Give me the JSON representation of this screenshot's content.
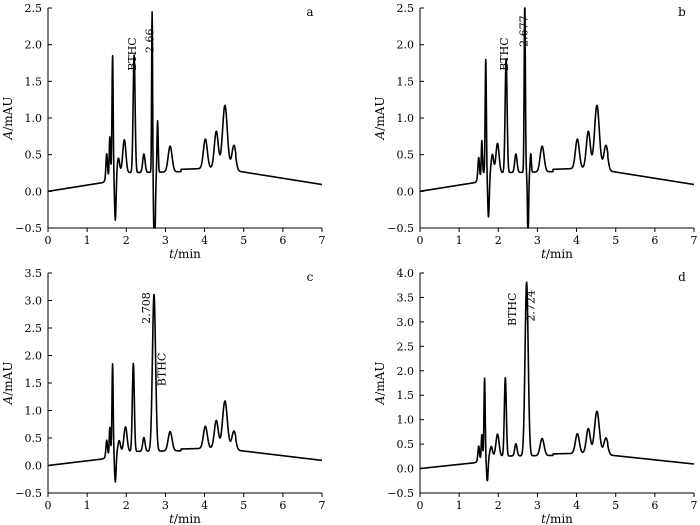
{
  "chart_data": [
    {
      "type": "line",
      "panel": "a",
      "xlabel_var": "t",
      "xlabel_unit": "/min",
      "ylabel_var": "A",
      "ylabel_unit": "/mAU",
      "xlim": [
        0,
        7
      ],
      "ylim": [
        -0.5,
        2.5
      ],
      "xticks": [
        0,
        1,
        2,
        3,
        4,
        5,
        6,
        7
      ],
      "yticks": [
        -0.5,
        0.0,
        0.5,
        1.0,
        1.5,
        2.0,
        2.5
      ],
      "ytick_labels": [
        "−0.5",
        "0.0",
        "0.5",
        "1.0",
        "1.5",
        "2.0",
        "2.5"
      ],
      "annotations": [
        {
          "text": "BTHC",
          "x": 2.25,
          "y": 2.1,
          "rotate": -90
        },
        {
          "text": "2.66",
          "x": 2.7,
          "y": 2.22,
          "rotate": -90
        }
      ],
      "peaks": [
        {
          "t": 1.5,
          "h": 0.35,
          "w": 0.02
        },
        {
          "t": 1.58,
          "h": 0.55,
          "w": 0.015
        },
        {
          "t": 1.65,
          "h": 1.6,
          "w": 0.015
        },
        {
          "t": 1.72,
          "h": -0.65,
          "w": 0.02
        },
        {
          "t": 1.8,
          "h": 0.2,
          "w": 0.03
        },
        {
          "t": 1.95,
          "h": 0.45,
          "w": 0.04
        },
        {
          "t": 2.2,
          "h": 1.6,
          "w": 0.025
        },
        {
          "t": 2.45,
          "h": 0.25,
          "w": 0.03
        },
        {
          "t": 2.66,
          "h": 2.2,
          "w": 0.012
        },
        {
          "t": 2.72,
          "h": -1.2,
          "w": 0.02
        },
        {
          "t": 2.8,
          "h": 0.7,
          "w": 0.015
        },
        {
          "t": 3.12,
          "h": 0.35,
          "w": 0.05
        },
        {
          "t": 4.02,
          "h": 0.4,
          "w": 0.05
        },
        {
          "t": 4.3,
          "h": 0.5,
          "w": 0.05
        },
        {
          "t": 4.52,
          "h": 0.85,
          "w": 0.06
        },
        {
          "t": 4.75,
          "h": 0.3,
          "w": 0.05
        }
      ]
    },
    {
      "type": "line",
      "panel": "b",
      "xlabel_var": "t",
      "xlabel_unit": "/min",
      "ylabel_var": "A",
      "ylabel_unit": "/mAU",
      "xlim": [
        0,
        7
      ],
      "ylim": [
        -0.5,
        2.5
      ],
      "xticks": [
        0,
        1,
        2,
        3,
        4,
        5,
        6,
        7
      ],
      "yticks": [
        -0.5,
        0.0,
        0.5,
        1.0,
        1.5,
        2.0,
        2.5
      ],
      "ytick_labels": [
        "−0.5",
        "0.0",
        "0.5",
        "1.0",
        "1.5",
        "2.0",
        "2.5"
      ],
      "annotations": [
        {
          "text": "BTHC",
          "x": 2.25,
          "y": 2.1,
          "rotate": -90
        },
        {
          "text": "2.677",
          "x": 2.75,
          "y": 2.4,
          "rotate": -90
        }
      ],
      "peaks": [
        {
          "t": 1.5,
          "h": 0.3,
          "w": 0.02
        },
        {
          "t": 1.58,
          "h": 0.5,
          "w": 0.015
        },
        {
          "t": 1.68,
          "h": 1.55,
          "w": 0.015
        },
        {
          "t": 1.75,
          "h": -0.6,
          "w": 0.02
        },
        {
          "t": 1.85,
          "h": 0.25,
          "w": 0.03
        },
        {
          "t": 1.98,
          "h": 0.4,
          "w": 0.04
        },
        {
          "t": 2.2,
          "h": 1.55,
          "w": 0.025
        },
        {
          "t": 2.45,
          "h": 0.25,
          "w": 0.03
        },
        {
          "t": 2.677,
          "h": 2.35,
          "w": 0.015
        },
        {
          "t": 2.76,
          "h": -0.9,
          "w": 0.015
        },
        {
          "t": 2.83,
          "h": 0.25,
          "w": 0.015
        },
        {
          "t": 3.12,
          "h": 0.35,
          "w": 0.05
        },
        {
          "t": 4.02,
          "h": 0.4,
          "w": 0.05
        },
        {
          "t": 4.3,
          "h": 0.5,
          "w": 0.05
        },
        {
          "t": 4.52,
          "h": 0.85,
          "w": 0.06
        },
        {
          "t": 4.75,
          "h": 0.3,
          "w": 0.05
        }
      ]
    },
    {
      "type": "line",
      "panel": "c",
      "xlabel_var": "t",
      "xlabel_unit": "/min",
      "ylabel_var": "A",
      "ylabel_unit": "/mAU",
      "xlim": [
        0,
        7
      ],
      "ylim": [
        -0.5,
        3.5
      ],
      "xticks": [
        0,
        1,
        2,
        3,
        4,
        5,
        6,
        7
      ],
      "yticks": [
        -0.5,
        0.0,
        0.5,
        1.0,
        1.5,
        2.0,
        2.5,
        3.0,
        3.5
      ],
      "ytick_labels": [
        "−0.5",
        "0.0",
        "0.5",
        "1.0",
        "1.5",
        "2.0",
        "2.5",
        "3.0",
        "3.5"
      ],
      "annotations": [
        {
          "text": "2.708",
          "x": 2.6,
          "y": 3.15,
          "rotate": -90
        },
        {
          "text": "BTHC",
          "x": 3.0,
          "y": 2.05,
          "rotate": -90
        }
      ],
      "peaks": [
        {
          "t": 1.5,
          "h": 0.3,
          "w": 0.02
        },
        {
          "t": 1.58,
          "h": 0.5,
          "w": 0.015
        },
        {
          "t": 1.65,
          "h": 1.6,
          "w": 0.015
        },
        {
          "t": 1.72,
          "h": -0.55,
          "w": 0.02
        },
        {
          "t": 1.82,
          "h": 0.2,
          "w": 0.03
        },
        {
          "t": 1.98,
          "h": 0.45,
          "w": 0.04
        },
        {
          "t": 2.18,
          "h": 1.6,
          "w": 0.025
        },
        {
          "t": 2.45,
          "h": 0.25,
          "w": 0.03
        },
        {
          "t": 2.708,
          "h": 2.85,
          "w": 0.04
        },
        {
          "t": 3.12,
          "h": 0.35,
          "w": 0.05
        },
        {
          "t": 4.02,
          "h": 0.4,
          "w": 0.05
        },
        {
          "t": 4.3,
          "h": 0.5,
          "w": 0.05
        },
        {
          "t": 4.52,
          "h": 0.85,
          "w": 0.06
        },
        {
          "t": 4.75,
          "h": 0.3,
          "w": 0.05
        }
      ]
    },
    {
      "type": "line",
      "panel": "d",
      "xlabel_var": "t",
      "xlabel_unit": "/min",
      "ylabel_var": "A",
      "ylabel_unit": "/mAU",
      "xlim": [
        0,
        7
      ],
      "ylim": [
        -0.5,
        4.0
      ],
      "xticks": [
        0,
        1,
        2,
        3,
        4,
        5,
        6,
        7
      ],
      "yticks": [
        -0.5,
        0.0,
        0.5,
        1.0,
        1.5,
        2.0,
        2.5,
        3.0,
        3.5,
        4.0
      ],
      "ytick_labels": [
        "−0.5",
        "0.0",
        "0.5",
        "1.0",
        "1.5",
        "2.0",
        "2.5",
        "3.0",
        "3.5",
        "4.0"
      ],
      "annotations": [
        {
          "text": "BTHC",
          "x": 2.45,
          "y": 3.6,
          "rotate": -90
        },
        {
          "text": "2.724",
          "x": 2.93,
          "y": 3.65,
          "rotate": -90
        }
      ],
      "peaks": [
        {
          "t": 1.5,
          "h": 0.3,
          "w": 0.02
        },
        {
          "t": 1.58,
          "h": 0.5,
          "w": 0.015
        },
        {
          "t": 1.65,
          "h": 1.6,
          "w": 0.015
        },
        {
          "t": 1.72,
          "h": -0.5,
          "w": 0.02
        },
        {
          "t": 1.82,
          "h": 0.2,
          "w": 0.03
        },
        {
          "t": 1.98,
          "h": 0.45,
          "w": 0.04
        },
        {
          "t": 2.18,
          "h": 1.6,
          "w": 0.025
        },
        {
          "t": 2.45,
          "h": 0.25,
          "w": 0.03
        },
        {
          "t": 2.724,
          "h": 3.55,
          "w": 0.04
        },
        {
          "t": 3.12,
          "h": 0.35,
          "w": 0.05
        },
        {
          "t": 4.02,
          "h": 0.4,
          "w": 0.05
        },
        {
          "t": 4.3,
          "h": 0.5,
          "w": 0.05
        },
        {
          "t": 4.52,
          "h": 0.85,
          "w": 0.06
        },
        {
          "t": 4.75,
          "h": 0.3,
          "w": 0.05
        }
      ]
    }
  ]
}
